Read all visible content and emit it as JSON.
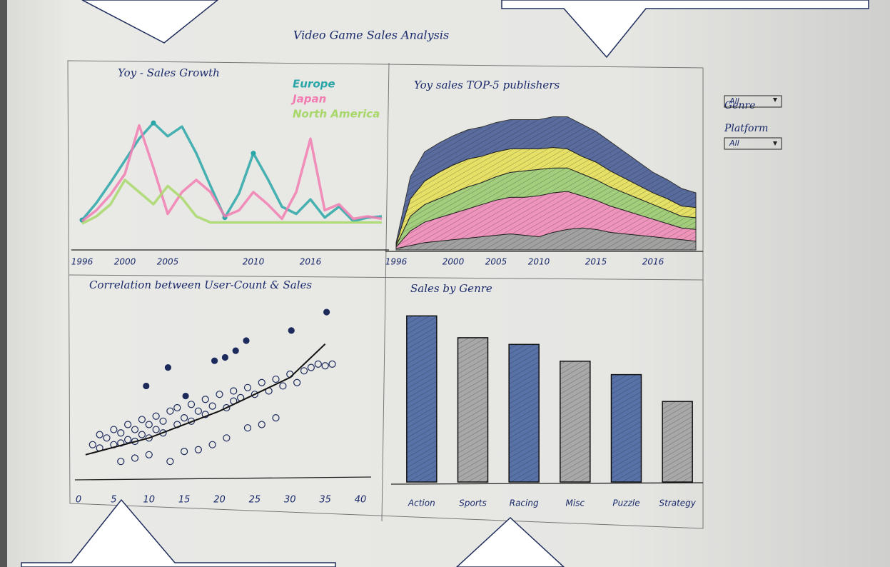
{
  "title": "Video Game Sales Analysis",
  "filters": [
    {
      "label": "Genre",
      "value": "All"
    },
    {
      "label": "Platform",
      "value": "All"
    }
  ],
  "chart_data": [
    {
      "type": "line",
      "title": "Yoy - Sales Growth",
      "categories": [
        "1996",
        null,
        null,
        "2000",
        null,
        null,
        "2005",
        null,
        null,
        null,
        null,
        null,
        "2010",
        null,
        null,
        null,
        "2016",
        null,
        null,
        null,
        null,
        null
      ],
      "ylim": [
        0,
        100
      ],
      "series": [
        {
          "name": "Europe",
          "color": "#2aa6a8",
          "values": [
            7,
            21,
            38,
            56,
            74,
            87,
            76,
            84,
            62,
            35,
            9,
            29,
            62,
            41,
            18,
            12,
            24,
            9,
            18,
            6,
            9,
            10
          ]
        },
        {
          "name": "Japan",
          "color": "#f27cb2",
          "values": [
            6,
            15,
            28,
            45,
            85,
            50,
            12,
            30,
            40,
            30,
            10,
            15,
            30,
            20,
            8,
            30,
            74,
            15,
            20,
            8,
            10,
            8
          ]
        },
        {
          "name": "North America",
          "color": "#a8d86a",
          "values": [
            4,
            10,
            20,
            40,
            30,
            20,
            35,
            25,
            10,
            5,
            5,
            5,
            5,
            5,
            5,
            5,
            5,
            5,
            5,
            5,
            5,
            5
          ]
        }
      ]
    },
    {
      "type": "area",
      "stacked": true,
      "title": "Yoy sales TOP-5 publishers",
      "categories": [
        "1996",
        null,
        null,
        null,
        "2000",
        null,
        null,
        "2005",
        null,
        null,
        "2010",
        null,
        null,
        null,
        "2015",
        null,
        null,
        null,
        "2016",
        null,
        null,
        null
      ],
      "ylim": [
        0,
        100
      ],
      "series": [
        {
          "color": "#9a9a9a",
          "values": [
            1,
            3,
            5,
            6,
            7,
            8,
            9,
            10,
            11,
            10,
            9,
            12,
            14,
            15,
            14,
            12,
            11,
            10,
            9,
            8,
            7,
            6
          ]
        },
        {
          "color": "#f08cb8",
          "values": [
            1,
            10,
            14,
            16,
            18,
            20,
            22,
            24,
            25,
            26,
            28,
            27,
            26,
            22,
            20,
            18,
            16,
            14,
            12,
            10,
            8,
            8
          ]
        },
        {
          "color": "#9ccc72",
          "values": [
            1,
            10,
            12,
            13,
            14,
            15,
            15,
            16,
            17,
            18,
            18,
            17,
            16,
            15,
            14,
            13,
            12,
            11,
            10,
            9,
            8,
            8
          ]
        },
        {
          "color": "#e6e05a",
          "values": [
            1,
            12,
            16,
            18,
            19,
            19,
            18,
            17,
            16,
            15,
            14,
            14,
            13,
            12,
            12,
            11,
            10,
            9,
            8,
            8,
            7,
            7
          ]
        },
        {
          "color": "#4a5f96",
          "values": [
            1,
            15,
            20,
            20,
            20,
            20,
            20,
            20,
            20,
            20,
            20,
            21,
            22,
            22,
            21,
            20,
            18,
            16,
            14,
            13,
            12,
            10
          ]
        }
      ]
    },
    {
      "type": "scatter",
      "title": "Correlation between User-Count & Sales",
      "xlim": [
        0,
        40
      ],
      "xticks": [
        0,
        5,
        10,
        15,
        20,
        25,
        30,
        35,
        40
      ],
      "ylim": [
        0,
        100
      ],
      "series": [
        {
          "color": "#1c2a5c",
          "marker": "filled",
          "x": [
            9.6,
            12.7,
            15.2,
            19.3,
            20.8,
            22.3,
            23.8,
            30.2,
            35.2
          ],
          "values": [
            53,
            64,
            47,
            68,
            70,
            74,
            80,
            86,
            97
          ]
        },
        {
          "color": "#1c2a5c",
          "marker": "open",
          "x": [
            2,
            3,
            3,
            4,
            5,
            5,
            6,
            6,
            7,
            7,
            8,
            8,
            9,
            9,
            10,
            10,
            11,
            11,
            12,
            12,
            13,
            14,
            14,
            15,
            16,
            16,
            17,
            18,
            18,
            19,
            20,
            21,
            22,
            22,
            23,
            24,
            25,
            26,
            27,
            28,
            29,
            30,
            31,
            32,
            33,
            34,
            6,
            8,
            10,
            13,
            15,
            17,
            19,
            21,
            24,
            26,
            28,
            35,
            36
          ],
          "values": [
            18,
            24,
            16,
            22,
            27,
            18,
            25,
            19,
            30,
            21,
            27,
            20,
            33,
            24,
            30,
            22,
            35,
            27,
            32,
            25,
            38,
            30,
            40,
            34,
            42,
            32,
            38,
            45,
            36,
            41,
            48,
            40,
            50,
            44,
            46,
            52,
            48,
            55,
            50,
            57,
            53,
            60,
            55,
            62,
            64,
            66,
            8,
            10,
            12,
            8,
            14,
            15,
            18,
            22,
            28,
            30,
            34,
            65,
            66
          ]
        },
        {
          "color": "#111111",
          "marker": "line",
          "x": [
            1,
            10,
            20,
            30,
            35
          ],
          "values": [
            12,
            22,
            38,
            58,
            78
          ]
        }
      ]
    },
    {
      "type": "bar",
      "title": "Sales by Genre",
      "categories": [
        "Action",
        "Sports",
        "Racing",
        "Misc",
        "Puzzle",
        "Strategy"
      ],
      "values": [
        99,
        86,
        82,
        72,
        64,
        48
      ],
      "colors": [
        "#5872a8",
        "#a8a8a8",
        "#5872a8",
        "#a8a8a8",
        "#5872a8",
        "#a8a8a8"
      ],
      "ylim": [
        0,
        100
      ]
    }
  ]
}
